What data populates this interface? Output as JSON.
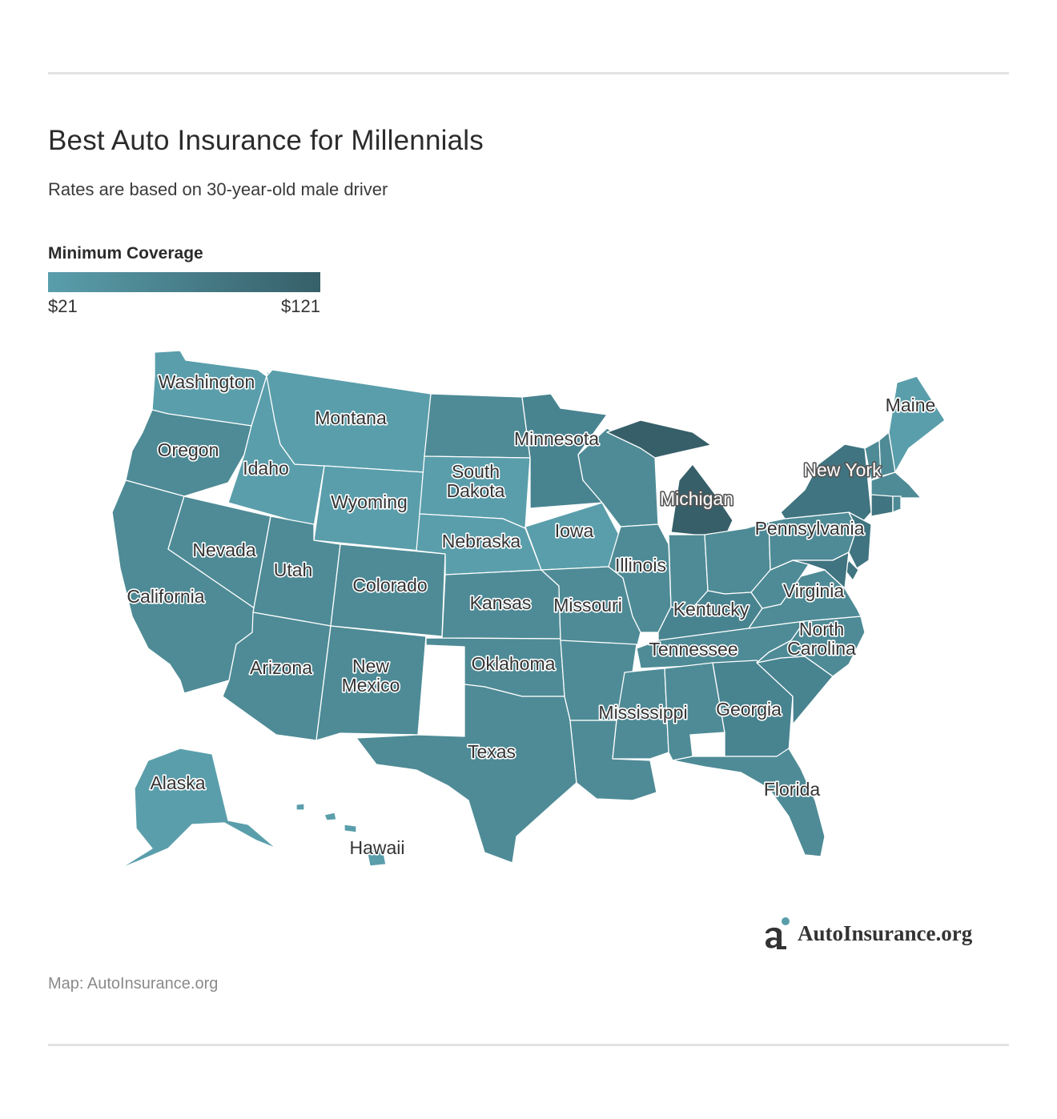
{
  "header": {
    "title": "Best Auto Insurance for Millennials",
    "subtitle": "Rates are based on 30-year-old male driver"
  },
  "legend": {
    "title": "Minimum Coverage",
    "min_label": "$21",
    "max_label": "$121",
    "min_color": "#5a9eab",
    "max_color": "#365f69"
  },
  "colors": {
    "light": "#5a9eab",
    "mid": "#4e8b96",
    "midDark": "#488390",
    "dark": "#3f7480",
    "darkest": "#365f69"
  },
  "states": [
    {
      "name": "Washington",
      "label": "Washington",
      "shade": "light"
    },
    {
      "name": "Oregon",
      "label": "Oregon",
      "shade": "mid"
    },
    {
      "name": "California",
      "label": "California",
      "shade": "mid"
    },
    {
      "name": "Nevada",
      "label": "Nevada",
      "shade": "mid"
    },
    {
      "name": "Idaho",
      "label": "Idaho",
      "shade": "light"
    },
    {
      "name": "Montana",
      "label": "Montana",
      "shade": "light"
    },
    {
      "name": "Wyoming",
      "label": "Wyoming",
      "shade": "light"
    },
    {
      "name": "Utah",
      "label": "Utah",
      "shade": "mid"
    },
    {
      "name": "Arizona",
      "label": "Arizona",
      "shade": "mid"
    },
    {
      "name": "Colorado",
      "label": "Colorado",
      "shade": "mid"
    },
    {
      "name": "New Mexico",
      "label": "New\nMexico",
      "shade": "mid"
    },
    {
      "name": "North Dakota",
      "label": "",
      "shade": "mid"
    },
    {
      "name": "South Dakota",
      "label": "South\nDakota",
      "shade": "light"
    },
    {
      "name": "Nebraska",
      "label": "Nebraska",
      "shade": "light"
    },
    {
      "name": "Kansas",
      "label": "Kansas",
      "shade": "mid"
    },
    {
      "name": "Oklahoma",
      "label": "Oklahoma",
      "shade": "mid"
    },
    {
      "name": "Texas",
      "label": "Texas",
      "shade": "mid"
    },
    {
      "name": "Minnesota",
      "label": "Minnesota",
      "shade": "midDark"
    },
    {
      "name": "Iowa",
      "label": "Iowa",
      "shade": "light"
    },
    {
      "name": "Missouri",
      "label": "Missouri",
      "shade": "mid"
    },
    {
      "name": "Arkansas",
      "label": "",
      "shade": "mid"
    },
    {
      "name": "Louisiana",
      "label": "",
      "shade": "mid"
    },
    {
      "name": "Wisconsin",
      "label": "",
      "shade": "mid"
    },
    {
      "name": "Illinois",
      "label": "Illinois",
      "shade": "mid"
    },
    {
      "name": "Michigan",
      "label": "Michigan",
      "shade": "darkest"
    },
    {
      "name": "Indiana",
      "label": "",
      "shade": "mid"
    },
    {
      "name": "Ohio",
      "label": "",
      "shade": "mid"
    },
    {
      "name": "Kentucky",
      "label": "Kentucky",
      "shade": "midDark"
    },
    {
      "name": "Tennessee",
      "label": "Tennessee",
      "shade": "mid"
    },
    {
      "name": "Mississippi",
      "label": "Mississippi",
      "shade": "mid"
    },
    {
      "name": "Alabama",
      "label": "",
      "shade": "mid"
    },
    {
      "name": "Georgia",
      "label": "Georgia",
      "shade": "midDark"
    },
    {
      "name": "Florida",
      "label": "Florida",
      "shade": "mid"
    },
    {
      "name": "South Carolina",
      "label": "",
      "shade": "midDark"
    },
    {
      "name": "North Carolina",
      "label": "North\nCarolina",
      "shade": "mid"
    },
    {
      "name": "Virginia",
      "label": "Virginia",
      "shade": "mid"
    },
    {
      "name": "West Virginia",
      "label": "",
      "shade": "mid"
    },
    {
      "name": "Pennsylvania",
      "label": "Pennsylvania",
      "shade": "mid"
    },
    {
      "name": "New York",
      "label": "New York",
      "shade": "dark"
    },
    {
      "name": "New Jersey",
      "label": "",
      "shade": "dark"
    },
    {
      "name": "Delaware",
      "label": "",
      "shade": "dark"
    },
    {
      "name": "Maryland",
      "label": "",
      "shade": "dark"
    },
    {
      "name": "Vermont",
      "label": "",
      "shade": "mid"
    },
    {
      "name": "New Hampshire",
      "label": "",
      "shade": "mid"
    },
    {
      "name": "Maine",
      "label": "Maine",
      "shade": "light"
    },
    {
      "name": "Massachusetts",
      "label": "",
      "shade": "mid"
    },
    {
      "name": "Connecticut",
      "label": "",
      "shade": "dark"
    },
    {
      "name": "Rhode Island",
      "label": "",
      "shade": "mid"
    },
    {
      "name": "Alaska",
      "label": "Alaska",
      "shade": "light"
    },
    {
      "name": "Hawaii",
      "label": "Hawaii",
      "shade": "light"
    }
  ],
  "logo": {
    "mark": "ai",
    "text": "AutoInsurance.org"
  },
  "source": "Map: AutoInsurance.org"
}
